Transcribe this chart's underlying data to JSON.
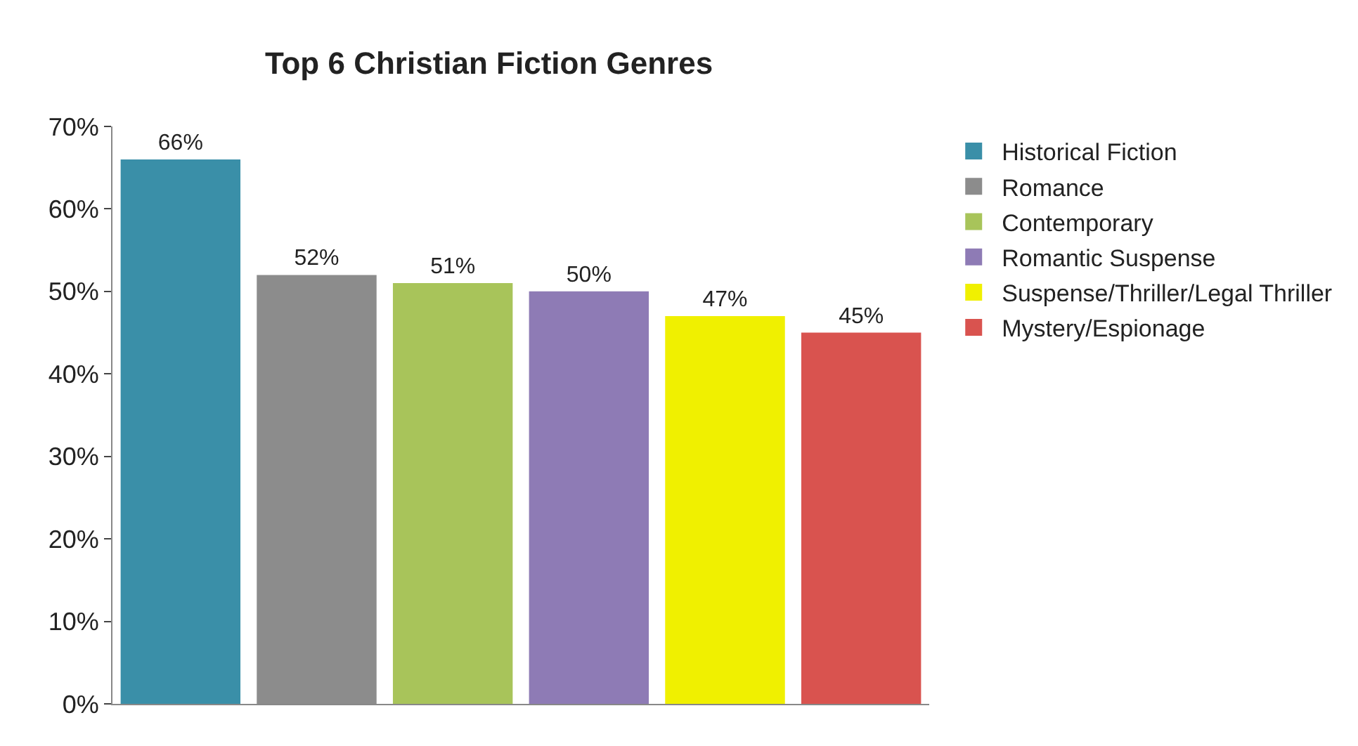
{
  "chart_data": {
    "type": "bar",
    "title": "Top 6 Christian Fiction Genres",
    "categories": [
      null,
      null,
      null,
      null,
      null,
      null
    ],
    "series": [
      {
        "name": "Historical Fiction",
        "color": "#3a8fa8",
        "values": [
          66,
          null,
          null,
          null,
          null,
          null
        ],
        "value_labels": [
          "66%",
          null,
          null,
          null,
          null,
          null
        ]
      },
      {
        "name": "Romance",
        "color": "#8c8c8c",
        "values": [
          null,
          52,
          null,
          null,
          null,
          null
        ],
        "value_labels": [
          null,
          "52%",
          null,
          null,
          null,
          null
        ]
      },
      {
        "name": "Contemporary",
        "color": "#a8c45a",
        "values": [
          null,
          null,
          51,
          null,
          null,
          null
        ],
        "value_labels": [
          null,
          null,
          "51%",
          null,
          null,
          null
        ]
      },
      {
        "name": "Romantic Suspense",
        "color": "#8e7bb5",
        "values": [
          null,
          null,
          null,
          50,
          null,
          null
        ],
        "value_labels": [
          null,
          null,
          null,
          "50%",
          null,
          null
        ]
      },
      {
        "name": "Suspense/Thriller/Legal Thriller",
        "color": "#f0f000",
        "values": [
          null,
          null,
          null,
          null,
          47,
          null
        ],
        "value_labels": [
          null,
          null,
          null,
          null,
          "47%",
          null
        ]
      },
      {
        "name": "Mystery/Espionage",
        "color": "#d9534f",
        "values": [
          null,
          null,
          null,
          null,
          null,
          45
        ],
        "value_labels": [
          null,
          null,
          null,
          null,
          null,
          "45%"
        ]
      }
    ],
    "ylim": [
      0,
      70
    ],
    "yticks": [
      {
        "value": 0,
        "label": "0%"
      },
      {
        "value": 10,
        "label": "10%"
      },
      {
        "value": 20,
        "label": "20%"
      },
      {
        "value": 30,
        "label": "30%"
      },
      {
        "value": 40,
        "label": "40%"
      },
      {
        "value": 50,
        "label": "50%"
      },
      {
        "value": 60,
        "label": "60%"
      },
      {
        "value": 70,
        "label": "70%"
      }
    ],
    "grid": false,
    "legend": "right",
    "tick_labels": "y"
  }
}
